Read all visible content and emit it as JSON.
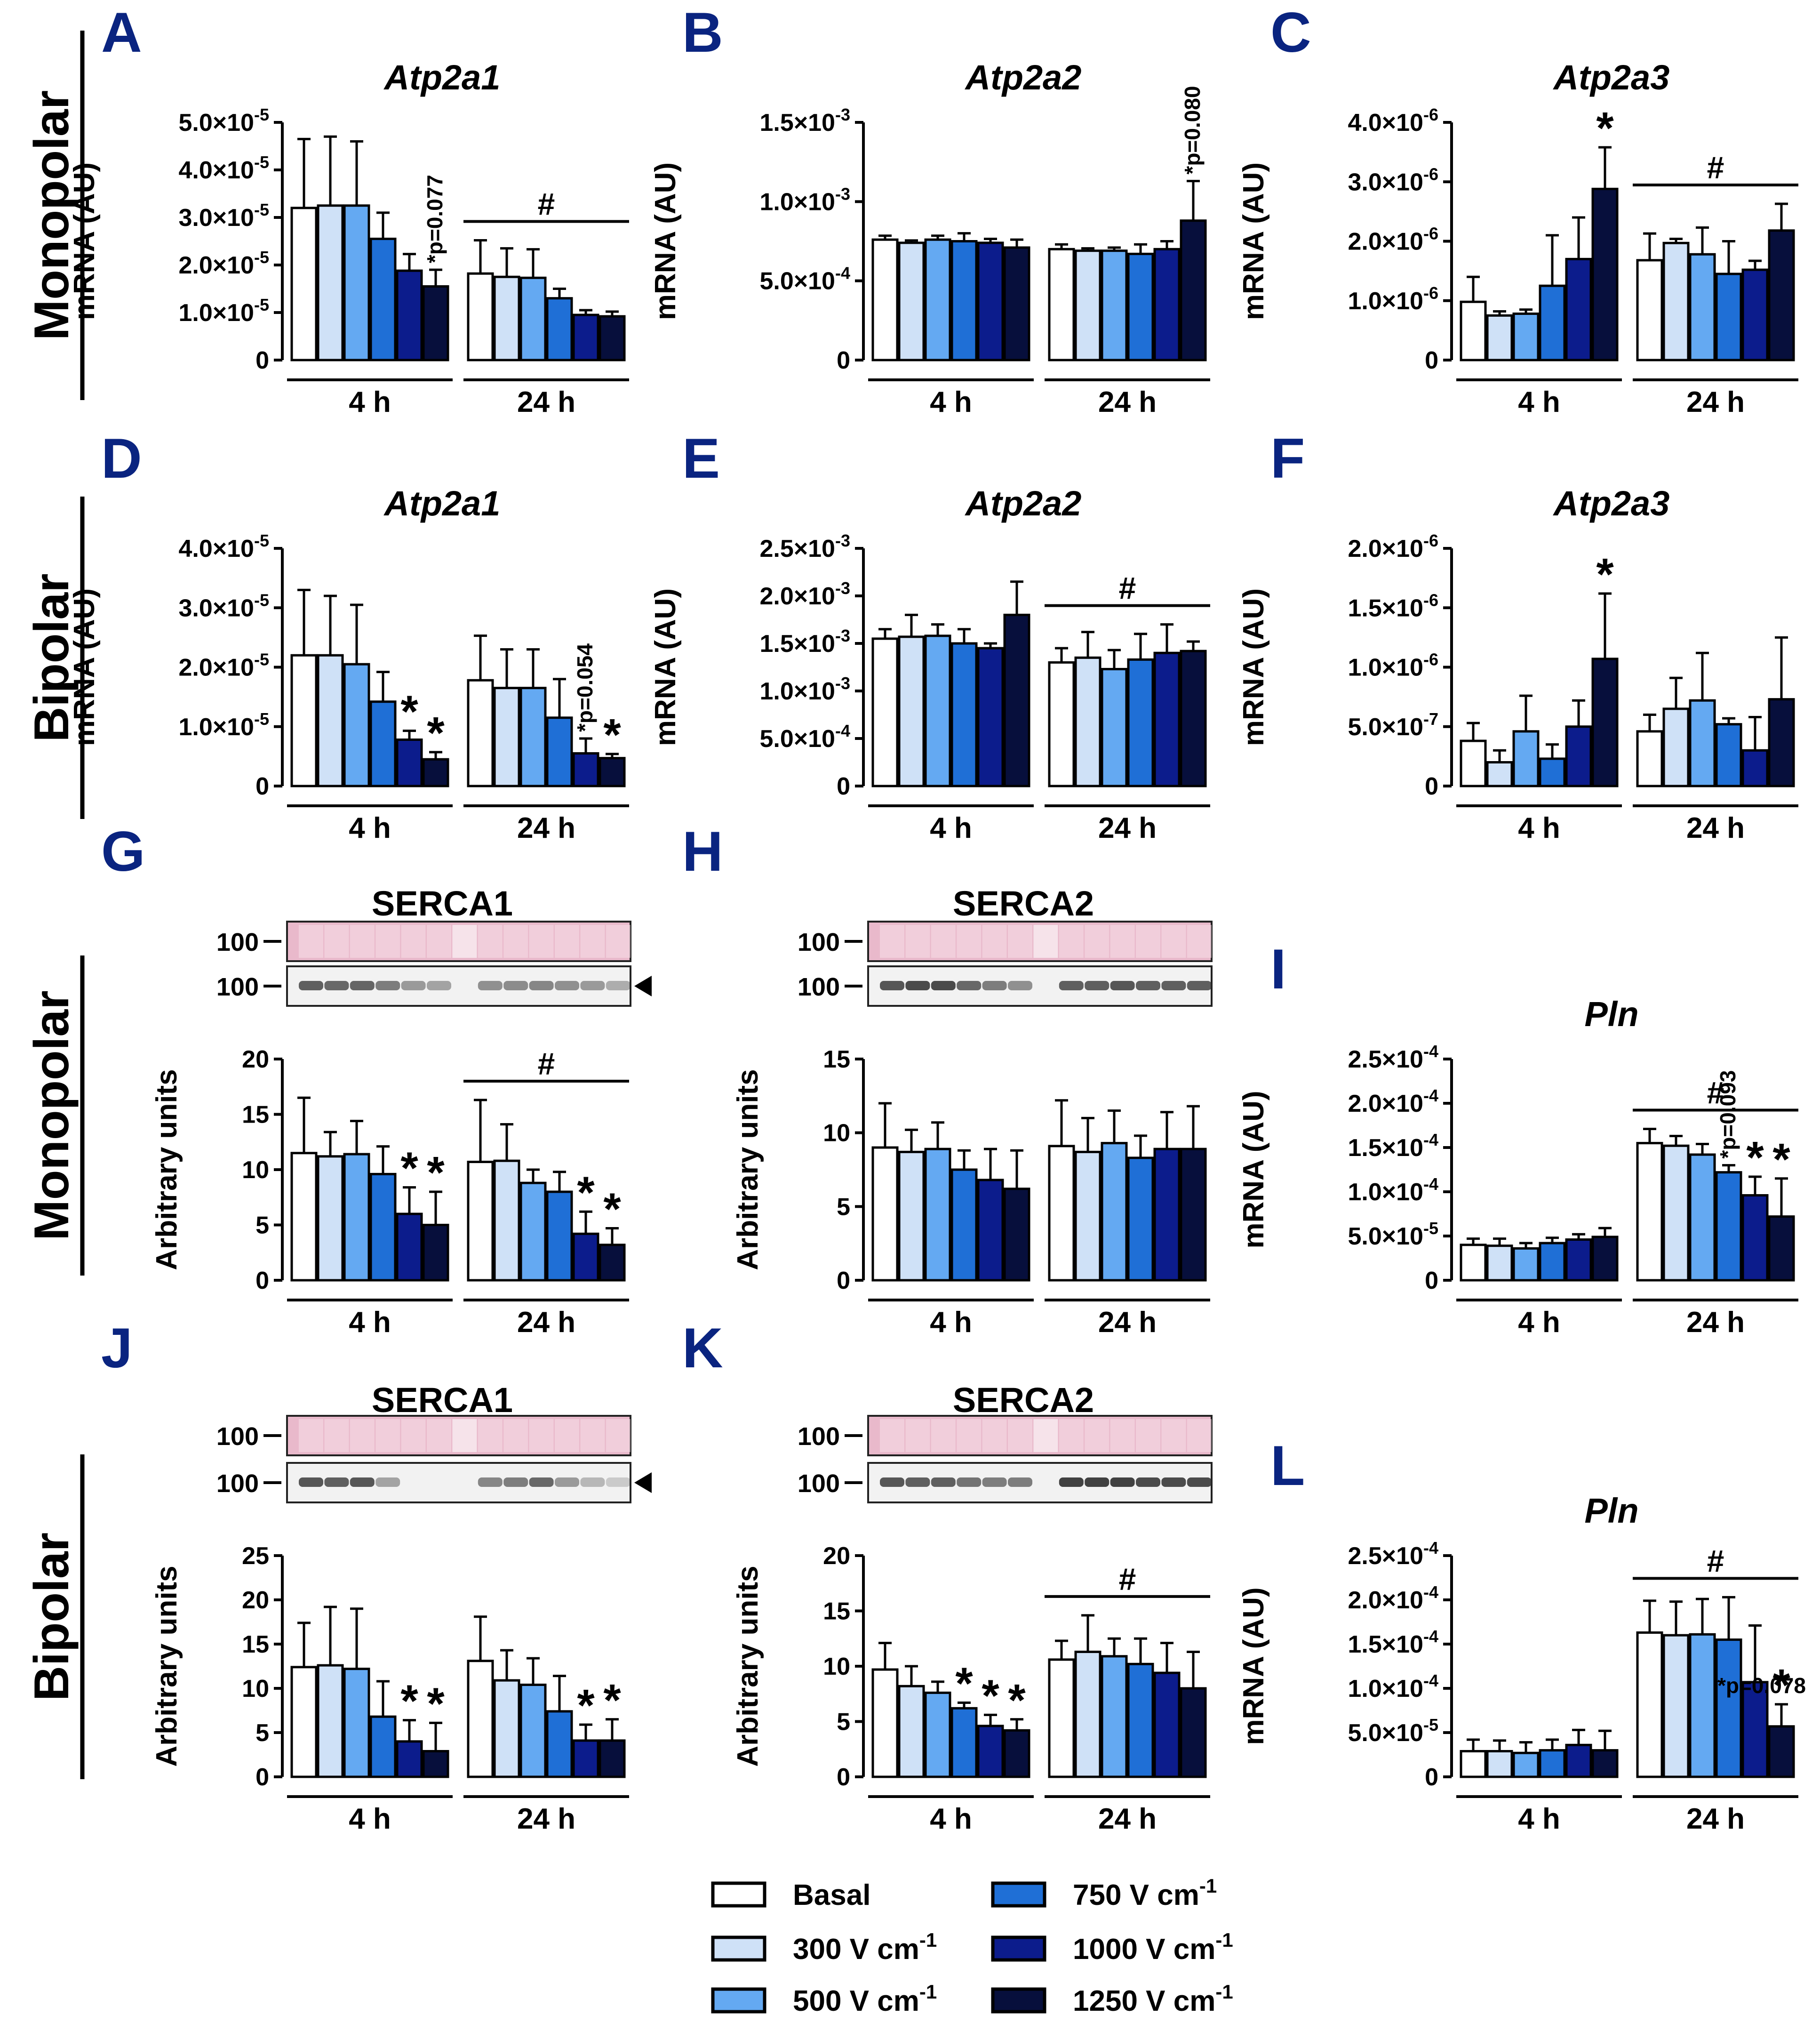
{
  "colors": {
    "letter": "#0a2480",
    "series": [
      "#ffffff",
      "#cfe1f7",
      "#64a9f2",
      "#1f6fd6",
      "#0c1c8c",
      "#070f3c"
    ],
    "ponceau": "#e9b9cb",
    "ponceau_light": "#f7dce6",
    "blot_band": "#2e2e2e"
  },
  "side_labels": [
    "Monopolar",
    "Bipolar",
    "Monopolar",
    "Bipolar"
  ],
  "legend": [
    {
      "label": "Basal",
      "sup": ""
    },
    {
      "label": "300 V cm",
      "sup": "-1"
    },
    {
      "label": "500 V cm",
      "sup": "-1"
    },
    {
      "label": "750 V cm",
      "sup": "-1"
    },
    {
      "label": "1000 V cm",
      "sup": "-1"
    },
    {
      "label": "1250 V cm",
      "sup": "-1"
    }
  ],
  "chart_data": [
    {
      "letter": "A",
      "title": "Atp2a1",
      "italic": true,
      "type": "bar",
      "ylabel": "mRNA (AU)",
      "groups": [
        "4 h",
        "24 h"
      ],
      "ylim": [
        0,
        5e-05
      ],
      "yticks": [
        {
          "m": "0",
          "e": ""
        },
        {
          "m": "1.0",
          "e": "-5"
        },
        {
          "m": "2.0",
          "e": "-5"
        },
        {
          "m": "3.0",
          "e": "-5"
        },
        {
          "m": "4.0",
          "e": "-5"
        },
        {
          "m": "5.0",
          "e": "-5"
        }
      ],
      "values": [
        [
          3.2e-05,
          3.25e-05,
          3.25e-05,
          2.55e-05,
          1.88e-05,
          1.55e-05
        ],
        [
          1.82e-05,
          1.75e-05,
          1.73e-05,
          1.3e-05,
          9.5e-06,
          9.2e-06
        ]
      ],
      "errors": [
        [
          1.45e-05,
          1.45e-05,
          1.35e-05,
          5.5e-06,
          3.5e-06,
          3.5e-06
        ],
        [
          7e-06,
          6e-06,
          6e-06,
          2e-06,
          1e-06,
          1e-06
        ]
      ],
      "hash": [
        1
      ],
      "stars": [],
      "annotations": [
        {
          "group": 0,
          "bar": 5,
          "text": "*p=0.077"
        }
      ]
    },
    {
      "letter": "B",
      "title": "Atp2a2",
      "italic": true,
      "type": "bar",
      "ylabel": "mRNA (AU)",
      "groups": [
        "4 h",
        "24 h"
      ],
      "ylim": [
        0,
        0.0015
      ],
      "yticks": [
        {
          "m": "0",
          "e": ""
        },
        {
          "m": "5.0",
          "e": "-4"
        },
        {
          "m": "1.0",
          "e": "-3"
        },
        {
          "m": "1.5",
          "e": "-3"
        }
      ],
      "values": [
        [
          0.00076,
          0.00074,
          0.00076,
          0.00075,
          0.00074,
          0.00071
        ],
        [
          0.0007,
          0.00069,
          0.00069,
          0.00067,
          0.0007,
          0.00088
        ]
      ],
      "errors": [
        [
          2.5e-05,
          1.5e-05,
          2.5e-05,
          5e-05,
          2.5e-05,
          5e-05
        ],
        [
          3e-05,
          1.5e-05,
          2e-05,
          6e-05,
          5e-05,
          0.00025
        ]
      ],
      "hash": [],
      "stars": [],
      "annotations": [
        {
          "group": 1,
          "bar": 5,
          "text": "*p=0.080"
        }
      ]
    },
    {
      "letter": "C",
      "title": "Atp2a3",
      "italic": true,
      "type": "bar",
      "ylabel": "mRNA (AU)",
      "groups": [
        "4 h",
        "24 h"
      ],
      "ylim": [
        0,
        4e-06
      ],
      "yticks": [
        {
          "m": "0",
          "e": ""
        },
        {
          "m": "1.0",
          "e": "-6"
        },
        {
          "m": "2.0",
          "e": "-6"
        },
        {
          "m": "3.0",
          "e": "-6"
        },
        {
          "m": "4.0",
          "e": "-6"
        }
      ],
      "values": [
        [
          9.8e-07,
          7.5e-07,
          7.8e-07,
          1.25e-06,
          1.7e-06,
          2.88e-06
        ],
        [
          1.68e-06,
          1.97e-06,
          1.78e-06,
          1.45e-06,
          1.52e-06,
          2.18e-06
        ]
      ],
      "errors": [
        [
          4.2e-07,
          7e-08,
          7e-08,
          8.5e-07,
          7e-07,
          7e-07
        ],
        [
          4.5e-07,
          7e-08,
          4.5e-07,
          5.5e-07,
          1.5e-07,
          4.5e-07
        ]
      ],
      "hash": [
        1
      ],
      "stars": [
        [
          0,
          5
        ]
      ],
      "annotations": []
    },
    {
      "letter": "D",
      "title": "Atp2a1",
      "italic": true,
      "type": "bar",
      "ylabel": "mRNA (AU)",
      "groups": [
        "4 h",
        "24 h"
      ],
      "ylim": [
        0,
        4e-05
      ],
      "yticks": [
        {
          "m": "0",
          "e": ""
        },
        {
          "m": "1.0",
          "e": "-5"
        },
        {
          "m": "2.0",
          "e": "-5"
        },
        {
          "m": "3.0",
          "e": "-5"
        },
        {
          "m": "4.0",
          "e": "-5"
        }
      ],
      "values": [
        [
          2.2e-05,
          2.2e-05,
          2.05e-05,
          1.42e-05,
          7.8e-06,
          4.5e-06
        ],
        [
          1.78e-05,
          1.65e-05,
          1.65e-05,
          1.15e-05,
          5.5e-06,
          4.7e-06
        ]
      ],
      "errors": [
        [
          1.1e-05,
          1e-05,
          1e-05,
          5e-06,
          1.5e-06,
          1.2e-06
        ],
        [
          7.5e-06,
          6.5e-06,
          6.5e-06,
          6.5e-06,
          2.5e-06,
          7e-07
        ]
      ],
      "hash": [],
      "stars": [
        [
          0,
          4
        ],
        [
          0,
          5
        ],
        [
          1,
          5
        ]
      ],
      "annotations": [
        {
          "group": 1,
          "bar": 4,
          "text": "*p=0.054"
        }
      ]
    },
    {
      "letter": "E",
      "title": "Atp2a2",
      "italic": true,
      "type": "bar",
      "ylabel": "mRNA (AU)",
      "groups": [
        "4 h",
        "24 h"
      ],
      "ylim": [
        0,
        0.0025
      ],
      "yticks": [
        {
          "m": "0",
          "e": ""
        },
        {
          "m": "5.0",
          "e": "-4"
        },
        {
          "m": "1.0",
          "e": "-3"
        },
        {
          "m": "1.5",
          "e": "-3"
        },
        {
          "m": "2.0",
          "e": "-3"
        },
        {
          "m": "2.5",
          "e": "-3"
        }
      ],
      "values": [
        [
          0.00155,
          0.00157,
          0.00158,
          0.0015,
          0.00145,
          0.0018
        ],
        [
          0.0013,
          0.00135,
          0.00123,
          0.00133,
          0.0014,
          0.00142
        ]
      ],
      "errors": [
        [
          0.0001,
          0.00023,
          0.00012,
          0.00015,
          5e-05,
          0.00035
        ],
        [
          0.00015,
          0.00027,
          0.0002,
          0.00027,
          0.0003,
          0.0001
        ]
      ],
      "hash": [
        1
      ],
      "stars": [],
      "annotations": []
    },
    {
      "letter": "F",
      "title": "Atp2a3",
      "italic": true,
      "type": "bar",
      "ylabel": "mRNA (AU)",
      "groups": [
        "4 h",
        "24 h"
      ],
      "ylim": [
        0,
        2e-06
      ],
      "yticks": [
        {
          "m": "0",
          "e": ""
        },
        {
          "m": "5.0",
          "e": "-7"
        },
        {
          "m": "1.0",
          "e": "-6"
        },
        {
          "m": "1.5",
          "e": "-6"
        },
        {
          "m": "2.0",
          "e": "-6"
        }
      ],
      "values": [
        [
          3.8e-07,
          2e-07,
          4.6e-07,
          2.3e-07,
          5e-07,
          1.07e-06
        ],
        [
          4.6e-07,
          6.5e-07,
          7.2e-07,
          5.2e-07,
          3e-07,
          7.3e-07
        ]
      ],
      "errors": [
        [
          1.5e-07,
          1e-07,
          3e-07,
          1.2e-07,
          2.2e-07,
          5.5e-07
        ],
        [
          1.4e-07,
          2.6e-07,
          4e-07,
          5e-08,
          2.8e-07,
          5.2e-07
        ]
      ],
      "hash": [],
      "stars": [
        [
          0,
          5
        ]
      ],
      "annotations": []
    },
    {
      "letter": "G",
      "title": "SERCA1",
      "italic": false,
      "type": "bar",
      "ylabel": "Arbitrary units",
      "blot": {
        "ponceau_label": "100",
        "band_label": "100",
        "arrow": true,
        "bands": [
          0.75,
          0.7,
          0.72,
          0.6,
          0.45,
          0.4,
          0.0,
          0.5,
          0.52,
          0.55,
          0.5,
          0.45,
          0.35
        ]
      },
      "groups": [
        "4 h",
        "24 h"
      ],
      "ylim": [
        0,
        20
      ],
      "yticks": [
        {
          "m": "0",
          "e": ""
        },
        {
          "m": "5",
          "e": ""
        },
        {
          "m": "10",
          "e": ""
        },
        {
          "m": "15",
          "e": ""
        },
        {
          "m": "20",
          "e": ""
        }
      ],
      "values": [
        [
          11.5,
          11.2,
          11.4,
          9.6,
          6.0,
          5.0
        ],
        [
          10.7,
          10.8,
          8.8,
          8.0,
          4.2,
          3.2
        ]
      ],
      "errors": [
        [
          5.0,
          2.2,
          3.0,
          2.5,
          2.4,
          3.0
        ],
        [
          5.6,
          3.3,
          1.2,
          1.8,
          2.0,
          1.5
        ]
      ],
      "hash": [
        1
      ],
      "stars": [
        [
          0,
          4
        ],
        [
          0,
          5
        ],
        [
          1,
          4
        ],
        [
          1,
          5
        ]
      ],
      "annotations": []
    },
    {
      "letter": "H",
      "title": "SERCA2",
      "italic": false,
      "type": "bar",
      "ylabel": "Arbitrary units",
      "blot": {
        "ponceau_label": "100",
        "band_label": "100",
        "arrow": false,
        "bands": [
          0.8,
          0.85,
          0.85,
          0.7,
          0.6,
          0.5,
          0.0,
          0.75,
          0.75,
          0.8,
          0.75,
          0.75,
          0.75
        ]
      },
      "groups": [
        "4 h",
        "24 h"
      ],
      "ylim": [
        0,
        15
      ],
      "yticks": [
        {
          "m": "0",
          "e": ""
        },
        {
          "m": "5",
          "e": ""
        },
        {
          "m": "10",
          "e": ""
        },
        {
          "m": "15",
          "e": ""
        }
      ],
      "values": [
        [
          9.0,
          8.7,
          8.9,
          7.5,
          6.8,
          6.2
        ],
        [
          9.1,
          8.7,
          9.3,
          8.3,
          8.9,
          8.9
        ]
      ],
      "errors": [
        [
          3.0,
          1.5,
          1.8,
          1.3,
          2.1,
          2.6
        ],
        [
          3.1,
          2.3,
          2.2,
          1.5,
          2.5,
          2.9
        ]
      ],
      "hash": [],
      "stars": [],
      "annotations": []
    },
    {
      "letter": "I",
      "title": "Pln",
      "italic": true,
      "type": "bar",
      "ylabel": "mRNA  (AU)",
      "groups": [
        "4 h",
        "24 h"
      ],
      "ylim": [
        0,
        0.00025
      ],
      "yticks": [
        {
          "m": "0",
          "e": ""
        },
        {
          "m": "5.0",
          "e": "-5"
        },
        {
          "m": "1.0",
          "e": "-4"
        },
        {
          "m": "1.5",
          "e": "-4"
        },
        {
          "m": "2.0",
          "e": "-4"
        },
        {
          "m": "2.5",
          "e": "-4"
        }
      ],
      "values": [
        [
          4e-05,
          3.9e-05,
          3.6e-05,
          4.2e-05,
          4.6e-05,
          4.9e-05
        ],
        [
          0.000155,
          0.000152,
          0.000142,
          0.000122,
          9.6e-05,
          7.2e-05
        ]
      ],
      "errors": [
        [
          7e-06,
          8e-06,
          6e-06,
          6e-06,
          6e-06,
          1e-05
        ],
        [
          1.6e-05,
          1.1e-05,
          1.2e-05,
          8e-06,
          2.1e-05,
          4.3e-05
        ]
      ],
      "hash": [
        1
      ],
      "stars": [
        [
          1,
          4
        ],
        [
          1,
          5
        ]
      ],
      "annotations": [
        {
          "group": 1,
          "bar": 3,
          "text": "*p=0.093"
        }
      ]
    },
    {
      "letter": "J",
      "title": "SERCA1",
      "italic": false,
      "type": "bar",
      "ylabel": "Arbitrary units",
      "blot": {
        "ponceau_label": "100",
        "band_label": "100",
        "arrow": true,
        "bands": [
          0.8,
          0.75,
          0.8,
          0.4,
          0.0,
          0.0,
          0.0,
          0.55,
          0.6,
          0.7,
          0.45,
          0.3,
          0.2
        ]
      },
      "groups": [
        "4 h",
        "24 h"
      ],
      "ylim": [
        0,
        25
      ],
      "yticks": [
        {
          "m": "0",
          "e": ""
        },
        {
          "m": "5",
          "e": ""
        },
        {
          "m": "10",
          "e": ""
        },
        {
          "m": "15",
          "e": ""
        },
        {
          "m": "20",
          "e": ""
        },
        {
          "m": "25",
          "e": ""
        }
      ],
      "values": [
        [
          12.4,
          12.6,
          12.2,
          6.8,
          4.0,
          2.9
        ],
        [
          13.1,
          10.9,
          10.4,
          7.4,
          4.1,
          4.1
        ]
      ],
      "errors": [
        [
          5.0,
          6.6,
          6.8,
          4.0,
          2.4,
          3.2
        ],
        [
          5.0,
          3.4,
          3.0,
          4.0,
          1.8,
          2.4
        ]
      ],
      "hash": [],
      "stars": [
        [
          0,
          4
        ],
        [
          0,
          5
        ],
        [
          1,
          4
        ],
        [
          1,
          5
        ]
      ],
      "annotations": []
    },
    {
      "letter": "K",
      "title": "SERCA2",
      "italic": false,
      "type": "bar",
      "ylabel": "Arbitrary units",
      "blot": {
        "ponceau_label": "100",
        "band_label": "100",
        "arrow": false,
        "bands": [
          0.8,
          0.75,
          0.75,
          0.65,
          0.6,
          0.6,
          0.0,
          0.9,
          0.9,
          0.9,
          0.85,
          0.85,
          0.85
        ]
      },
      "groups": [
        "4 h",
        "24 h"
      ],
      "ylim": [
        0,
        20
      ],
      "yticks": [
        {
          "m": "0",
          "e": ""
        },
        {
          "m": "5",
          "e": ""
        },
        {
          "m": "10",
          "e": ""
        },
        {
          "m": "15",
          "e": ""
        },
        {
          "m": "20",
          "e": ""
        }
      ],
      "values": [
        [
          9.7,
          8.2,
          7.6,
          6.2,
          4.6,
          4.2
        ],
        [
          10.6,
          11.3,
          10.9,
          10.2,
          9.4,
          8.0
        ]
      ],
      "errors": [
        [
          2.4,
          1.8,
          1.0,
          0.5,
          1.0,
          1.0
        ],
        [
          1.7,
          3.3,
          1.6,
          2.3,
          2.7,
          3.3
        ]
      ],
      "hash": [
        1
      ],
      "stars": [
        [
          0,
          3
        ],
        [
          0,
          4
        ],
        [
          0,
          5
        ]
      ],
      "annotations": []
    },
    {
      "letter": "L",
      "title": "Pln",
      "italic": true,
      "type": "bar",
      "ylabel": "mRNA (AU)",
      "groups": [
        "4 h",
        "24 h"
      ],
      "ylim": [
        0,
        0.00025
      ],
      "yticks": [
        {
          "m": "0",
          "e": ""
        },
        {
          "m": "5.0",
          "e": "-5"
        },
        {
          "m": "1.0",
          "e": "-4"
        },
        {
          "m": "1.5",
          "e": "-4"
        },
        {
          "m": "2.0",
          "e": "-4"
        },
        {
          "m": "2.5",
          "e": "-4"
        }
      ],
      "values": [
        [
          2.9e-05,
          2.9e-05,
          2.7e-05,
          3e-05,
          3.6e-05,
          3e-05
        ],
        [
          0.000163,
          0.00016,
          0.000161,
          0.000155,
          0.000107,
          5.7e-05
        ]
      ],
      "errors": [
        [
          1.3e-05,
          1.2e-05,
          1.2e-05,
          1.2e-05,
          1.7e-05,
          2.2e-05
        ],
        [
          3.6e-05,
          3.8e-05,
          4e-05,
          4.8e-05,
          6.4e-05,
          2.5e-05
        ]
      ],
      "hash": [
        1
      ],
      "stars": [
        [
          1,
          5
        ]
      ],
      "annotations": [
        {
          "group": 1,
          "bar": 5,
          "text": "*p=0.078"
        }
      ]
    }
  ]
}
